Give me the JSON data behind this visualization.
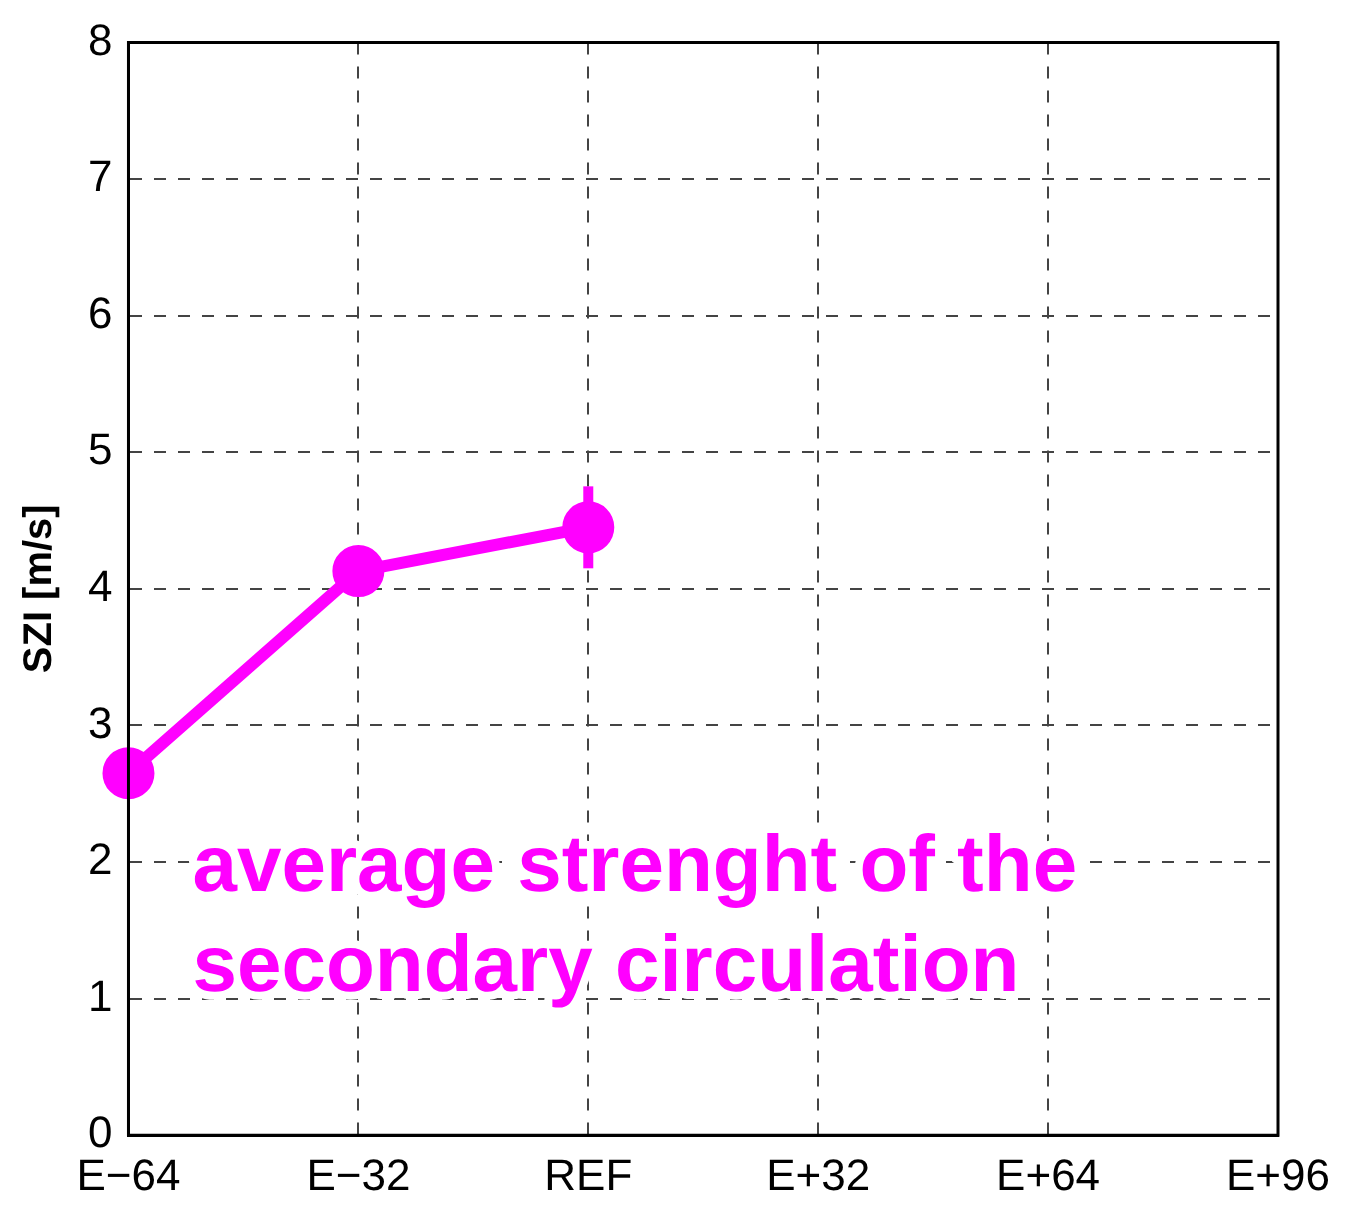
{
  "chart_data": {
    "type": "line",
    "ylabel": "SZI [m/s]",
    "categories": [
      "E−64",
      "E−32",
      "REF",
      "E+32",
      "E+64",
      "E+96"
    ],
    "series": [
      {
        "color": "#ff00ff",
        "values": [
          2.65,
          4.13,
          4.45,
          null,
          null,
          null
        ],
        "errors": [
          null,
          null,
          [
            4.15,
            4.75
          ],
          null,
          null,
          null
        ]
      }
    ],
    "ylim": [
      0,
      8
    ],
    "yticks": [
      0,
      1,
      2,
      3,
      4,
      5,
      6,
      7,
      8
    ],
    "grid": true,
    "legend": false,
    "marker": "circle",
    "line_style": "solid",
    "annotations": [
      "average strenght of the secondary circulation"
    ]
  }
}
